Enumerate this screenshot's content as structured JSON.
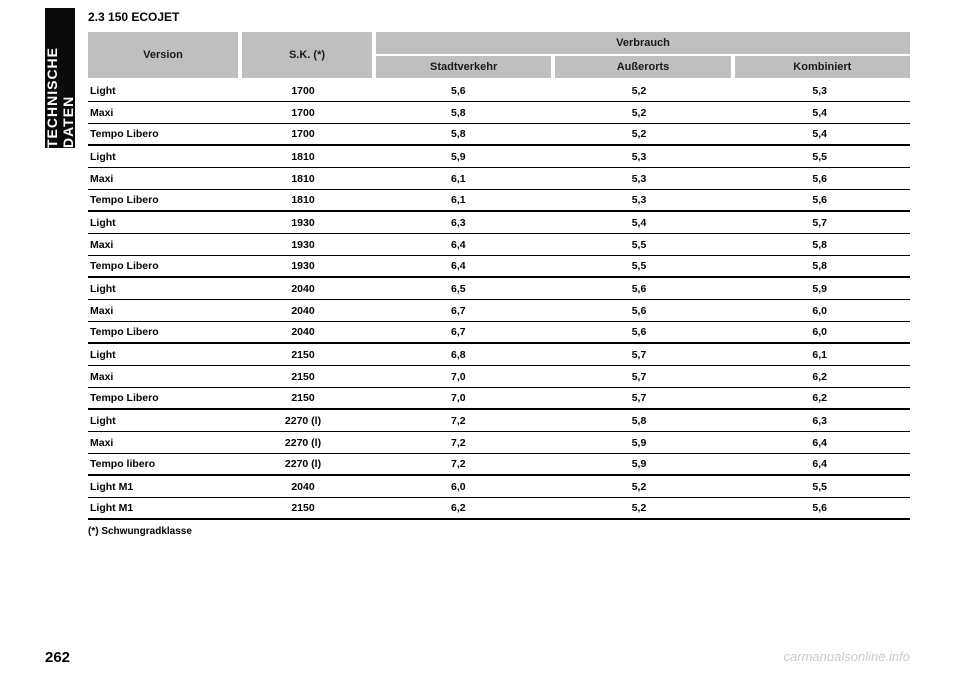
{
  "sidebar_tab": "TECHNISCHE DATEN",
  "section_title": "2.3 150 ECOJET",
  "page_number": "262",
  "watermark": "carmanualsonline.info",
  "table": {
    "header": {
      "version": "Version",
      "sk": "S.K. (*)",
      "verbrauch": "Verbrauch",
      "stadt": "Stadtverkehr",
      "aussen": "Außerorts",
      "kombi": "Kombiniert"
    },
    "rows": [
      {
        "v": "Light",
        "sk": "1700",
        "s": "5,6",
        "a": "5,2",
        "k": "5,3",
        "thick": false
      },
      {
        "v": "Maxi",
        "sk": "1700",
        "s": "5,8",
        "a": "5,2",
        "k": "5,4",
        "thick": false
      },
      {
        "v": "Tempo Libero",
        "sk": "1700",
        "s": "5,8",
        "a": "5,2",
        "k": "5,4",
        "thick": true
      },
      {
        "v": "Light",
        "sk": "1810",
        "s": "5,9",
        "a": "5,3",
        "k": "5,5",
        "thick": false
      },
      {
        "v": "Maxi",
        "sk": "1810",
        "s": "6,1",
        "a": "5,3",
        "k": "5,6",
        "thick": false
      },
      {
        "v": "Tempo Libero",
        "sk": "1810",
        "s": "6,1",
        "a": "5,3",
        "k": "5,6",
        "thick": true
      },
      {
        "v": "Light",
        "sk": "1930",
        "s": "6,3",
        "a": "5,4",
        "k": "5,7",
        "thick": false
      },
      {
        "v": "Maxi",
        "sk": "1930",
        "s": "6,4",
        "a": "5,5",
        "k": "5,8",
        "thick": false
      },
      {
        "v": "Tempo Libero",
        "sk": "1930",
        "s": "6,4",
        "a": "5,5",
        "k": "5,8",
        "thick": true
      },
      {
        "v": "Light",
        "sk": "2040",
        "s": "6,5",
        "a": "5,6",
        "k": "5,9",
        "thick": false
      },
      {
        "v": "Maxi",
        "sk": "2040",
        "s": "6,7",
        "a": "5,6",
        "k": "6,0",
        "thick": false
      },
      {
        "v": "Tempo Libero",
        "sk": "2040",
        "s": "6,7",
        "a": "5,6",
        "k": "6,0",
        "thick": true
      },
      {
        "v": "Light",
        "sk": "2150",
        "s": "6,8",
        "a": "5,7",
        "k": "6,1",
        "thick": false
      },
      {
        "v": "Maxi",
        "sk": "2150",
        "s": "7,0",
        "a": "5,7",
        "k": "6,2",
        "thick": false
      },
      {
        "v": "Tempo Libero",
        "sk": "2150",
        "s": "7,0",
        "a": "5,7",
        "k": "6,2",
        "thick": true
      },
      {
        "v": "Light",
        "sk": "2270 (l)",
        "s": "7,2",
        "a": "5,8",
        "k": "6,3",
        "thick": false
      },
      {
        "v": "Maxi",
        "sk": "2270 (l)",
        "s": "7,2",
        "a": "5,9",
        "k": "6,4",
        "thick": false
      },
      {
        "v": "Tempo libero",
        "sk": "2270 (l)",
        "s": "7,2",
        "a": "5,9",
        "k": "6,4",
        "thick": true
      },
      {
        "v": "Light M1",
        "sk": "2040",
        "s": "6,0",
        "a": "5,2",
        "k": "5,5",
        "thick": false
      },
      {
        "v": "Light M1",
        "sk": "2150",
        "s": "6,2",
        "a": "5,2",
        "k": "5,6",
        "thick": true
      }
    ],
    "footnote": "(*) Schwungradklasse"
  }
}
